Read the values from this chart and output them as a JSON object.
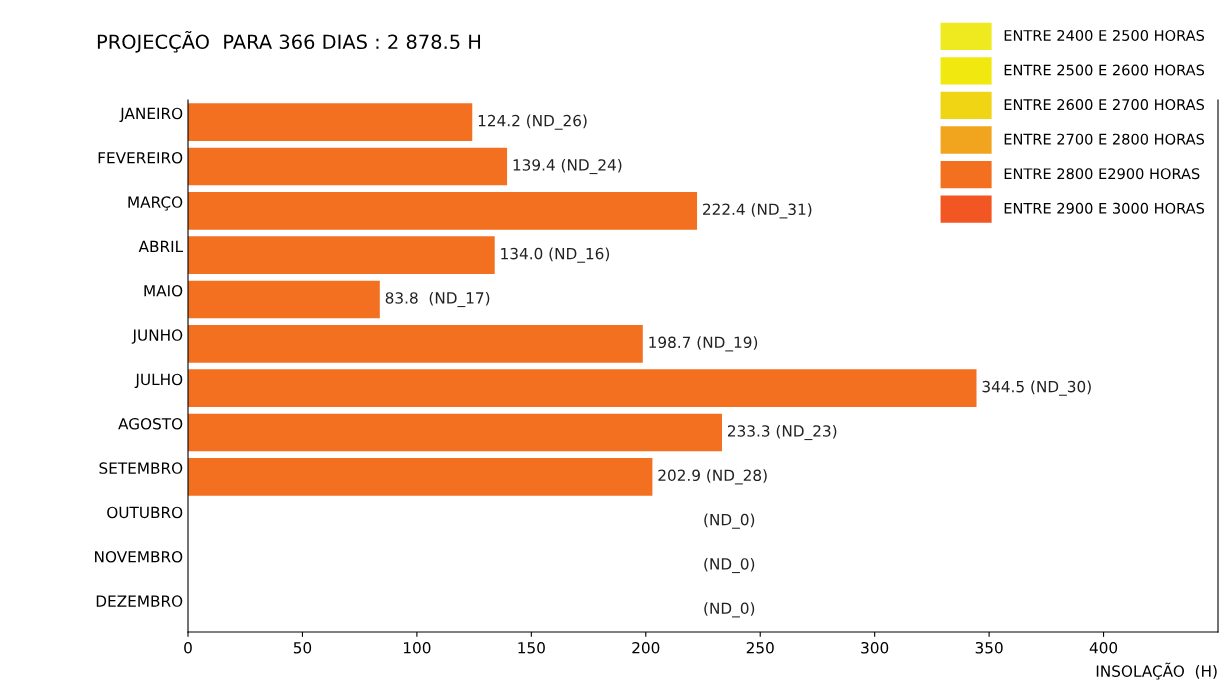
{
  "chart_data": {
    "type": "bar",
    "orientation": "horizontal",
    "title": "PROJECÇÃO  PARA 366 DIAS : 2 878.5 H",
    "xlabel": "INSOLAÇÃO  (H)",
    "categories": [
      "JANEIRO",
      "FEVEREIRO",
      "MARÇO",
      "ABRIL",
      "MAIO",
      "JUNHO",
      "JULHO",
      "AGOSTO",
      "SETEMBRO",
      "OUTUBRO",
      "NOVEMBRO",
      "DEZEMBRO"
    ],
    "series": [
      {
        "color": "#f37021",
        "values": [
          124.2,
          139.4,
          222.4,
          134.0,
          83.8,
          198.7,
          344.5,
          233.3,
          202.9,
          null,
          null,
          null
        ],
        "value_labels": [
          "124.2 (ND_26)",
          "139.4 (ND_24)",
          "222.4 (ND_31)",
          "134.0 (ND_16)",
          "83.8  (ND_17)",
          "198.7 (ND_19)",
          "344.5 (ND_30)",
          "233.3 (ND_23)",
          "202.9 (ND_28)",
          "(ND_0)",
          "(ND_0)",
          "(ND_0)"
        ]
      },
      {
        "name": "ENTRE 2400 E 2500 HORAS",
        "color": "#eeea1f",
        "values": [
          null,
          null,
          null,
          null,
          null,
          null,
          null,
          null,
          null,
          null,
          null,
          null
        ]
      },
      {
        "name": "ENTRE 2500 E 2600 HORAS",
        "color": "#f0e80f",
        "values": [
          null,
          null,
          null,
          null,
          null,
          null,
          null,
          null,
          null,
          null,
          null,
          null
        ]
      },
      {
        "name": "ENTRE 2600 E 2700 HORAS",
        "color": "#efd514",
        "values": [
          null,
          null,
          null,
          null,
          null,
          null,
          null,
          null,
          null,
          null,
          null,
          null
        ]
      },
      {
        "name": "ENTRE 2700 E 2800 HORAS",
        "color": "#f1a51f",
        "values": [
          null,
          null,
          null,
          null,
          null,
          null,
          null,
          null,
          null,
          null,
          null,
          null
        ]
      },
      {
        "name": "ENTRE 2800 E2900 HORAS",
        "color": "#f37021",
        "values": [
          null,
          null,
          null,
          null,
          null,
          null,
          null,
          null,
          null,
          null,
          null,
          null
        ]
      },
      {
        "name": "ENTRE 2900 E 3000 HORAS",
        "color": "#f15623",
        "values": [
          null,
          null,
          null,
          null,
          null,
          null,
          null,
          null,
          null,
          null,
          null,
          null
        ]
      }
    ],
    "xlim": [
      0,
      450
    ],
    "xticks": [
      0,
      50,
      100,
      150,
      200,
      250,
      300,
      350,
      400
    ],
    "grid": false,
    "legend": "top right"
  }
}
